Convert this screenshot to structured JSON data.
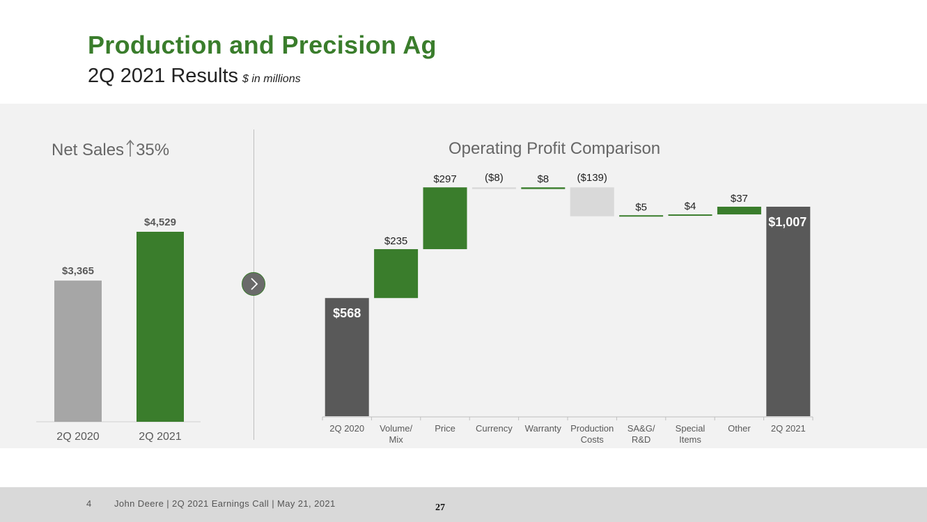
{
  "header": {
    "title": "Production and Precision Ag",
    "subtitle": "2Q 2021 Results",
    "units_note": "$ in millions"
  },
  "footer": {
    "page_number": "4",
    "caption": "John Deere | 2Q 2021 Earnings Call | May 21, 2021",
    "slide_number": "27"
  },
  "colors": {
    "green": "#3a7d2c",
    "gray_bar": "#a6a6a6",
    "dark_bar": "#595959",
    "light_bar": "#d9d9d9"
  },
  "icons": {
    "next": "chevron-right-icon",
    "up_arrow": "up-arrow-icon"
  },
  "chart_data": [
    {
      "type": "bar",
      "title_prefix": "Net Sales",
      "title_suffix": "35%",
      "categories": [
        "2Q 2020",
        "2Q 2021"
      ],
      "values": [
        3365,
        4529
      ],
      "value_labels": [
        "$3,365",
        "$4,529"
      ],
      "ylim": [
        0,
        4529
      ],
      "bar_colors": [
        "#a6a6a6",
        "#3a7d2c"
      ]
    },
    {
      "type": "bar",
      "subtype": "waterfall",
      "title": "Operating Profit Comparison",
      "categories": [
        [
          "2Q 2020"
        ],
        [
          "Volume/",
          "Mix"
        ],
        [
          "Price"
        ],
        [
          "Currency"
        ],
        [
          "Warranty"
        ],
        [
          "Production",
          "Costs"
        ],
        [
          "SA&G/",
          "R&D"
        ],
        [
          "Special",
          "Items"
        ],
        [
          "Other"
        ],
        [
          "2Q 2021"
        ]
      ],
      "values": [
        568,
        235,
        297,
        -8,
        8,
        -139,
        5,
        4,
        37,
        1007
      ],
      "kinds": [
        "total",
        "delta",
        "delta",
        "delta",
        "delta",
        "delta",
        "delta",
        "delta",
        "delta",
        "total"
      ],
      "value_labels": [
        "$568",
        "$235",
        "$297",
        "($8)",
        "$8",
        "($139)",
        "$5",
        "$4",
        "$37",
        "$1,007"
      ],
      "ylim": [
        0,
        1112
      ],
      "colors": {
        "total": "#595959",
        "positive": "#3a7d2c",
        "negative": "#d9d9d9"
      }
    }
  ]
}
